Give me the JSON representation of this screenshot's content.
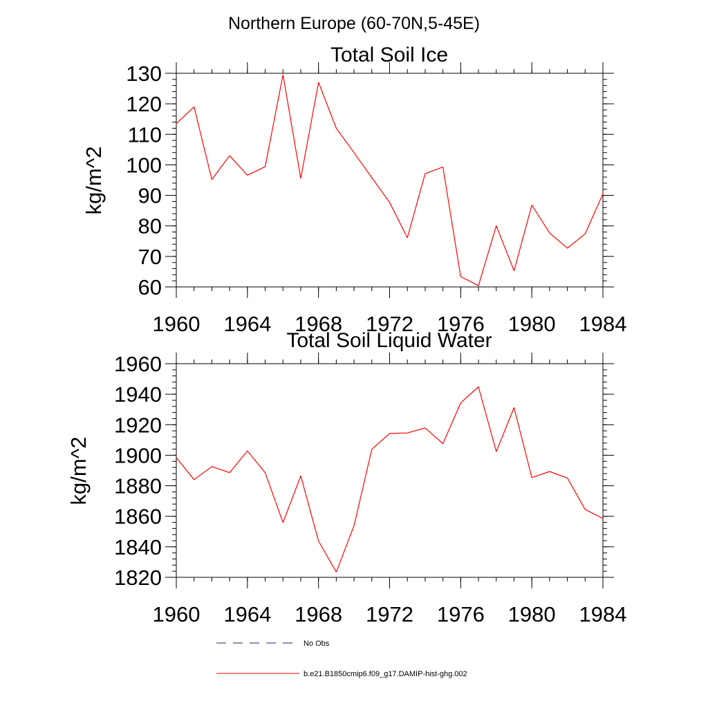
{
  "figure": {
    "title": "Northern Europe (60-70N,5-45E)"
  },
  "legend": {
    "entries": [
      {
        "label": "No Obs",
        "style": "dashed",
        "color": "#1c1c6e"
      },
      {
        "label": "b.e21.B1850cmip6.f09_g17.DAMIP-hist-ghg.002",
        "style": "solid",
        "color": "#ff0000"
      }
    ]
  },
  "chart_data": [
    {
      "type": "line",
      "title": "Total Soil Ice",
      "xlabel": "",
      "ylabel": "kg/m^2",
      "xlim": [
        1960,
        1984
      ],
      "ylim": [
        60,
        130
      ],
      "xticks": [
        1960,
        1964,
        1968,
        1972,
        1976,
        1980,
        1984
      ],
      "yticks": [
        60,
        70,
        80,
        90,
        100,
        110,
        120,
        130
      ],
      "x": [
        1960,
        1961,
        1962,
        1963,
        1964,
        1965,
        1966,
        1967,
        1968,
        1969,
        1970,
        1971,
        1972,
        1973,
        1974,
        1975,
        1976,
        1977,
        1978,
        1979,
        1980,
        1981,
        1982,
        1983,
        1984
      ],
      "series": [
        {
          "name": "b.e21.B1850cmip6.f09_g17.DAMIP-hist-ghg.002",
          "color": "#ff0000",
          "values": [
            113.5,
            119,
            95.2,
            103,
            96.6,
            99.4,
            129.5,
            95.6,
            127,
            112,
            104,
            95.8,
            87.7,
            76.1,
            97.1,
            99.3,
            63.4,
            60.4,
            80,
            65.3,
            86.8,
            77.7,
            72.7,
            77.4,
            90.5
          ]
        }
      ]
    },
    {
      "type": "line",
      "title": "Total Soil Liquid Water",
      "xlabel": "",
      "ylabel": "kg/m^2",
      "xlim": [
        1960,
        1984
      ],
      "ylim": [
        1820,
        1960
      ],
      "xticks": [
        1960,
        1964,
        1968,
        1972,
        1976,
        1980,
        1984
      ],
      "yticks": [
        1820,
        1840,
        1860,
        1880,
        1900,
        1920,
        1940,
        1960
      ],
      "x": [
        1960,
        1961,
        1962,
        1963,
        1964,
        1965,
        1966,
        1967,
        1968,
        1969,
        1970,
        1971,
        1972,
        1973,
        1974,
        1975,
        1976,
        1977,
        1978,
        1979,
        1980,
        1981,
        1982,
        1983,
        1984
      ],
      "series": [
        {
          "name": "b.e21.B1850cmip6.f09_g17.DAMIP-hist-ghg.002",
          "color": "#ff0000",
          "values": [
            1898.5,
            1884,
            1892.6,
            1888.6,
            1902.8,
            1888.6,
            1855.9,
            1886.4,
            1843.8,
            1823.5,
            1853.9,
            1903.9,
            1914.3,
            1914.6,
            1917.9,
            1907.6,
            1934.3,
            1944.8,
            1902.4,
            1931.2,
            1885.4,
            1889.3,
            1885.1,
            1864.5,
            1858.5
          ]
        }
      ]
    }
  ]
}
